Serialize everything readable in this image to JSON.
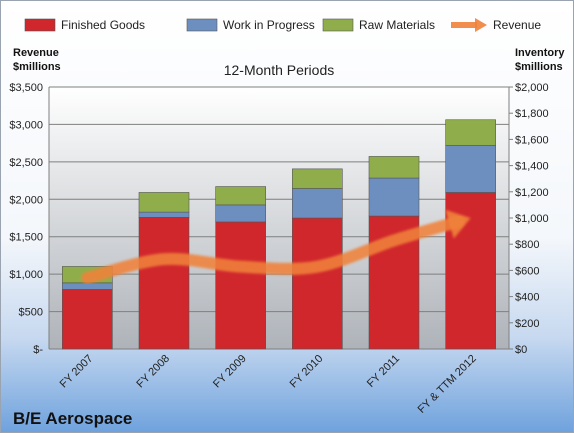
{
  "chart_data": {
    "type": "bar",
    "stacked": true,
    "title": "12-Month Periods",
    "company": "B/E Aerospace",
    "left_axis_label": [
      "Revenue",
      "$millions"
    ],
    "right_axis_label": [
      "Inventory",
      "$millions"
    ],
    "categories": [
      "FY 2007",
      "FY 2008",
      "FY 2009",
      "FY 2010",
      "FY 2011",
      "FY & TTM 2012"
    ],
    "left_ylim": [
      0,
      3500
    ],
    "right_ylim": [
      0,
      2000
    ],
    "left_ticks": [
      "$-",
      "$500",
      "$1,000",
      "$1,500",
      "$2,000",
      "$2,500",
      "$3,000",
      "$3,500"
    ],
    "right_ticks": [
      "$0",
      "$200",
      "$400",
      "$600",
      "$800",
      "$1,000",
      "$1,200",
      "$1,400",
      "$1,600",
      "$1,800",
      "$2,000"
    ],
    "legend_position": "top",
    "series": [
      {
        "name": "Finished Goods",
        "axis": "right",
        "color": "#d0272d",
        "values": [
          455,
          1005,
          970,
          1000,
          1015,
          1195
        ]
      },
      {
        "name": "Work in Progress",
        "axis": "right",
        "color": "#6d8fbf",
        "values": [
          50,
          40,
          130,
          225,
          290,
          360
        ]
      },
      {
        "name": "Raw Materials",
        "axis": "right",
        "color": "#8fae4b",
        "values": [
          125,
          150,
          140,
          150,
          165,
          195
        ]
      },
      {
        "name": "Revenue",
        "axis": "left",
        "type": "line",
        "color": "#f0823a",
        "values": [
          950,
          1200,
          1100,
          1100,
          1450,
          1750
        ]
      }
    ],
    "grid": true
  }
}
